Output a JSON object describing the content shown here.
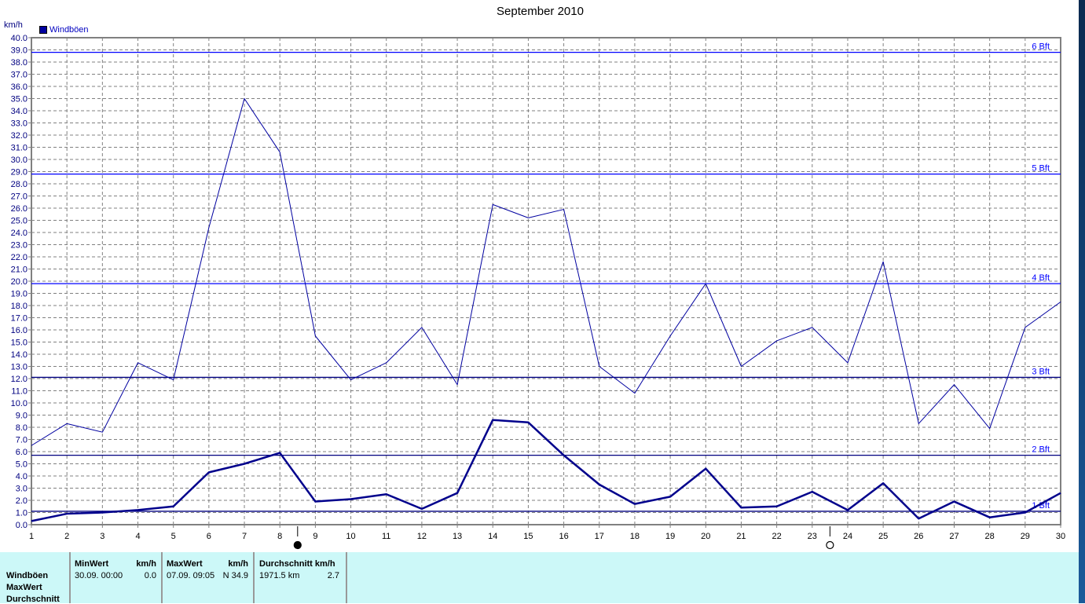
{
  "chart_data": {
    "type": "line",
    "title": "September 2010",
    "ylabel": "km/h",
    "legend": [
      "Windböen"
    ],
    "legend_placement": "top-left",
    "x": [
      1,
      2,
      3,
      4,
      5,
      6,
      7,
      8,
      9,
      10,
      11,
      12,
      13,
      14,
      15,
      16,
      17,
      18,
      19,
      20,
      21,
      22,
      23,
      24,
      25,
      26,
      27,
      28,
      29,
      30
    ],
    "xlim": [
      1,
      30
    ],
    "ylim": [
      0,
      40
    ],
    "ytick_step": 1,
    "grid": true,
    "series": [
      {
        "name": "Windböen",
        "style": "thin",
        "color": "#0000a0",
        "values": [
          6.5,
          8.3,
          7.6,
          13.3,
          11.9,
          24.4,
          35.0,
          30.6,
          15.5,
          11.9,
          13.3,
          16.2,
          11.5,
          26.3,
          25.2,
          25.9,
          13.0,
          10.8,
          15.5,
          19.8,
          13.0,
          15.1,
          16.2,
          13.3,
          21.6,
          8.3,
          11.5,
          7.9,
          16.2,
          18.3
        ]
      },
      {
        "style": "thick",
        "color": "#00008c",
        "values": [
          0.3,
          0.9,
          1.0,
          1.2,
          1.5,
          4.3,
          5.0,
          5.9,
          1.9,
          2.1,
          2.5,
          1.3,
          2.6,
          8.6,
          8.4,
          5.7,
          3.3,
          1.7,
          2.3,
          4.6,
          1.4,
          1.5,
          2.7,
          1.2,
          3.4,
          0.5,
          1.9,
          0.6,
          1.0,
          2.6
        ]
      }
    ],
    "reference_lines": [
      {
        "label": "1 Bft",
        "value": 1.1,
        "color": "#000080"
      },
      {
        "label": "2 Bft",
        "value": 5.7,
        "color": "#000080"
      },
      {
        "label": "3 Bft",
        "value": 12.1,
        "color": "#000080"
      },
      {
        "label": "4 Bft",
        "value": 19.8,
        "color": "#0000ff"
      },
      {
        "label": "5 Bft",
        "value": 28.8,
        "color": "#0000ff"
      },
      {
        "label": "6 Bft",
        "value": 38.8,
        "color": "#0000ff"
      }
    ],
    "moon_phases": [
      {
        "phase": "full-moon",
        "day": 8.5
      },
      {
        "phase": "new-moon",
        "day": 23.5
      }
    ]
  },
  "stats": {
    "row_labels": [
      "Windböen",
      "MaxWert",
      "Durchschnitt"
    ],
    "min": {
      "header": "MinWert",
      "unit": "km/h",
      "datetime": "30.09.  00:00",
      "value": "0.0"
    },
    "max": {
      "header": "MaxWert",
      "unit": "km/h",
      "datetime": "07.09.  09:05",
      "value": "N 34.9"
    },
    "avg": {
      "header": "Durchschnitt km/h",
      "distance": "1971.5 km",
      "value": "2.7"
    }
  }
}
